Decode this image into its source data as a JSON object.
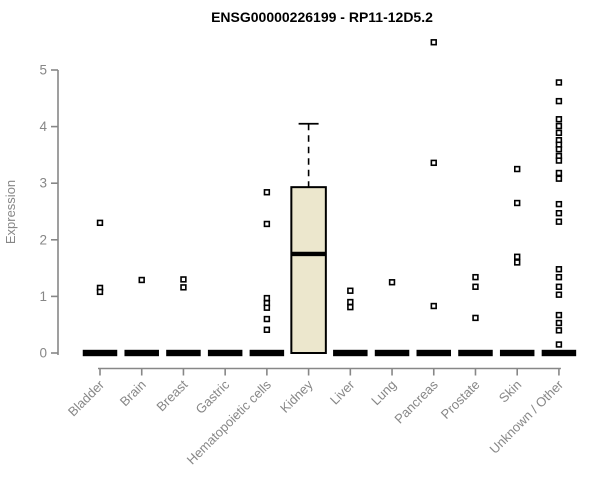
{
  "chart_data": {
    "type": "boxplot",
    "title": "ENSG00000226199 - RP11-12D5.2",
    "ylabel": "Expression",
    "xlabel": "",
    "yticks": [
      0,
      1,
      2,
      3,
      4,
      5
    ],
    "ylim": [
      0,
      5.6
    ],
    "grid": false,
    "legend": "none",
    "categories": [
      "Bladder",
      "Brain",
      "Breast",
      "Gastric",
      "Hematopoietic cells",
      "Kidney",
      "Liver",
      "Lung",
      "Pancreas",
      "Prostate",
      "Skin",
      "Unknown / Other"
    ],
    "boxes": [
      {
        "category": "Bladder",
        "q1": 0,
        "median": 0,
        "q3": 0,
        "whisker_low": 0,
        "whisker_high": 0,
        "outliers": [
          2.3,
          1.15,
          1.08
        ]
      },
      {
        "category": "Brain",
        "q1": 0,
        "median": 0,
        "q3": 0,
        "whisker_low": 0,
        "whisker_high": 0,
        "outliers": [
          1.29
        ]
      },
      {
        "category": "Breast",
        "q1": 0,
        "median": 0,
        "q3": 0,
        "whisker_low": 0,
        "whisker_high": 0,
        "outliers": [
          1.3,
          1.16
        ]
      },
      {
        "category": "Gastric",
        "q1": 0,
        "median": 0,
        "q3": 0,
        "whisker_low": 0,
        "whisker_high": 0,
        "outliers": []
      },
      {
        "category": "Hematopoietic cells",
        "q1": 0,
        "median": 0,
        "q3": 0,
        "whisker_low": 0,
        "whisker_high": 0,
        "outliers": [
          2.84,
          2.28,
          0.97,
          0.88,
          0.8,
          0.6,
          0.41
        ]
      },
      {
        "category": "Kidney",
        "q1": 0,
        "median": 1.75,
        "q3": 2.93,
        "whisker_low": 0,
        "whisker_high": 4.05,
        "outliers": []
      },
      {
        "category": "Liver",
        "q1": 0,
        "median": 0,
        "q3": 0,
        "whisker_low": 0,
        "whisker_high": 0,
        "outliers": [
          1.1,
          0.9,
          0.81
        ]
      },
      {
        "category": "Lung",
        "q1": 0,
        "median": 0,
        "q3": 0,
        "whisker_low": 0,
        "whisker_high": 0,
        "outliers": [
          1.25
        ]
      },
      {
        "category": "Pancreas",
        "q1": 0,
        "median": 0,
        "q3": 0,
        "whisker_low": 0,
        "whisker_high": 0,
        "outliers": [
          5.49,
          3.36,
          0.83
        ]
      },
      {
        "category": "Prostate",
        "q1": 0,
        "median": 0,
        "q3": 0,
        "whisker_low": 0,
        "whisker_high": 0,
        "outliers": [
          1.34,
          1.17,
          0.62
        ]
      },
      {
        "category": "Skin",
        "q1": 0,
        "median": 0,
        "q3": 0,
        "whisker_low": 0,
        "whisker_high": 0,
        "outliers": [
          3.25,
          2.65,
          1.7,
          1.6
        ]
      },
      {
        "category": "Unknown / Other",
        "q1": 0,
        "median": 0,
        "q3": 0,
        "whisker_low": 0,
        "whisker_high": 0,
        "outliers": [
          4.78,
          4.45,
          4.13,
          4.01,
          3.89,
          3.76,
          3.68,
          3.6,
          3.48,
          3.4,
          3.18,
          3.08,
          2.63,
          2.47,
          2.32,
          1.48,
          1.34,
          1.17,
          1.03,
          0.67,
          0.53,
          0.4,
          0.15
        ]
      }
    ],
    "colors": {
      "background": "#ffffff",
      "box_fill": "#ece7cd",
      "box_border": "#000000",
      "median": "#000000",
      "point": "#000000",
      "point_fill": "#ffffff",
      "axis": "#878787",
      "tick_text": "#878787",
      "title": "#000000"
    }
  }
}
